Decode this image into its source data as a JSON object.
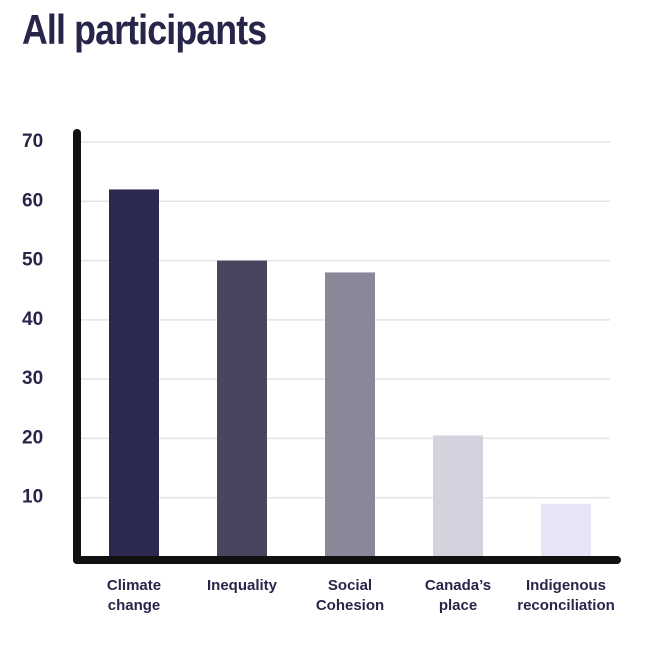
{
  "chart_data": {
    "type": "bar",
    "title": "All participants",
    "categories": [
      "Climate change",
      "Inequality",
      "Social Cohesion",
      "Canada’s place",
      "Indigenous reconciliation"
    ],
    "series": [
      {
        "values": [
          62,
          50,
          48,
          20.5,
          9
        ],
        "colors": [
          "#2b2950",
          "#48465e",
          "#8a8898",
          "#d4d2de",
          "#e8e6f6"
        ]
      }
    ],
    "ylim": [
      0,
      70
    ],
    "yticks": [
      10,
      20,
      30,
      40,
      50,
      60,
      70
    ],
    "grid": true
  }
}
